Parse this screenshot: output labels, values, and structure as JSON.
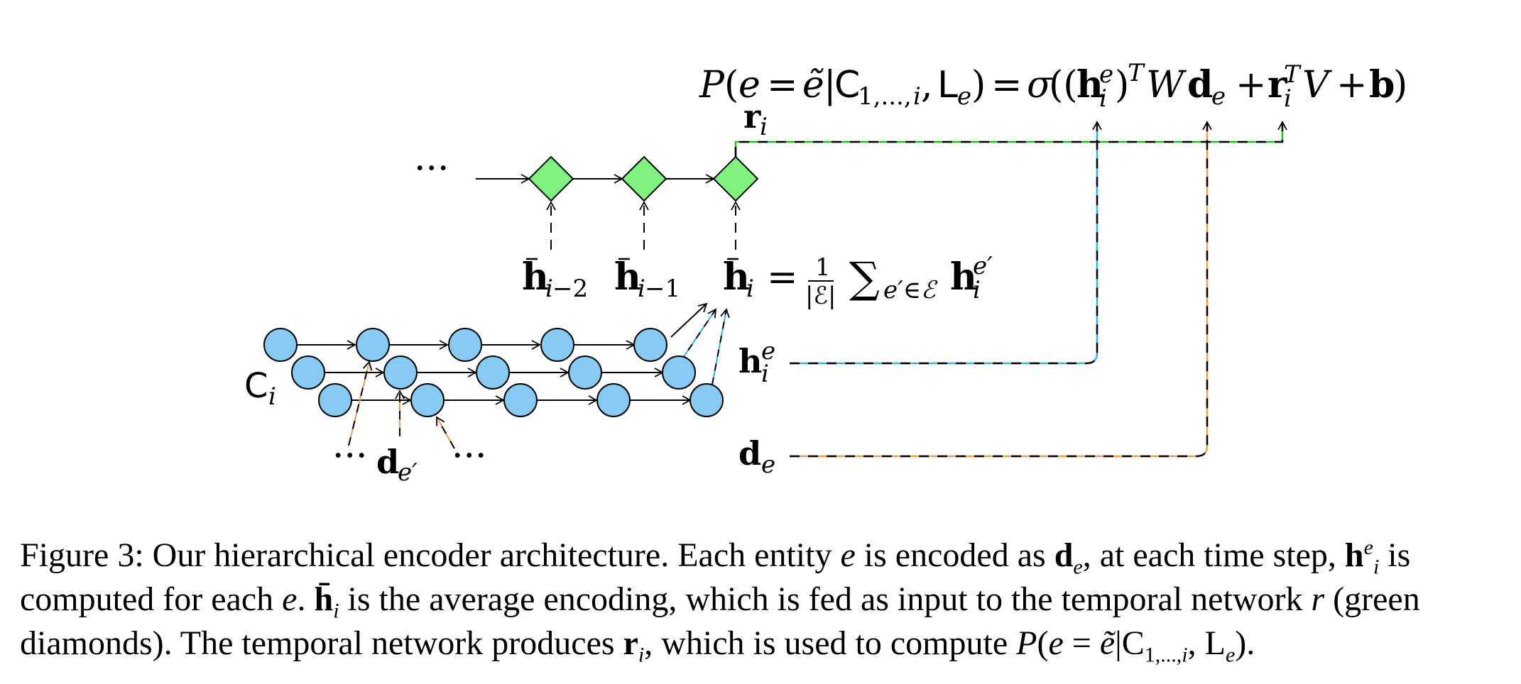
{
  "diagram": {
    "equation_top": "P(e = ẽ|C1,...,i, Le) = σ((hie)TWde + riTV + b)",
    "labels": {
      "r_i": "ri",
      "dots_left": "···",
      "hbar_i_minus_2": "h̄i−2",
      "hbar_i_minus_1": "h̄i−1",
      "hbar_i_eq": "h̄i = 1/|ℰ| ∑e′∈ℰ hie′",
      "h_i_e": "hie",
      "d_e": "de",
      "C_i": "Ci",
      "d_e_prime": "de′",
      "dots_bottom_left": "···",
      "dots_bottom_right": "···"
    },
    "colors": {
      "diamond_fill": "#7ff27f",
      "circle_fill": "#87cbf3",
      "green_line": "#22bb22",
      "blue_line": "#3ab0e0",
      "orange_line": "#f0a050"
    }
  },
  "caption": {
    "text": "Figure 3: Our hierarchical encoder architecture. Each entity e is encoded as de, at each time step, hie is computed for each e. h̄i is the average encoding, which is fed as input to the temporal network r (green diamonds). The temporal network produces ri, which is used to compute P(e = ẽ|C1,...,i, Le).",
    "line1": {
      "a": "Figure 3: Our hierarchical encoder architecture. Each entity ",
      "b": " is encoded as ",
      "c": ", at each time step, ",
      "d": " is"
    },
    "line2": {
      "a": "computed for each ",
      "b": ". ",
      "c": " is the average encoding, which is fed as input to the temporal network ",
      "d": " (green"
    },
    "line3": {
      "a": "diamonds). The temporal network produces ",
      "b": ", which is used to compute ",
      "c": "."
    }
  }
}
